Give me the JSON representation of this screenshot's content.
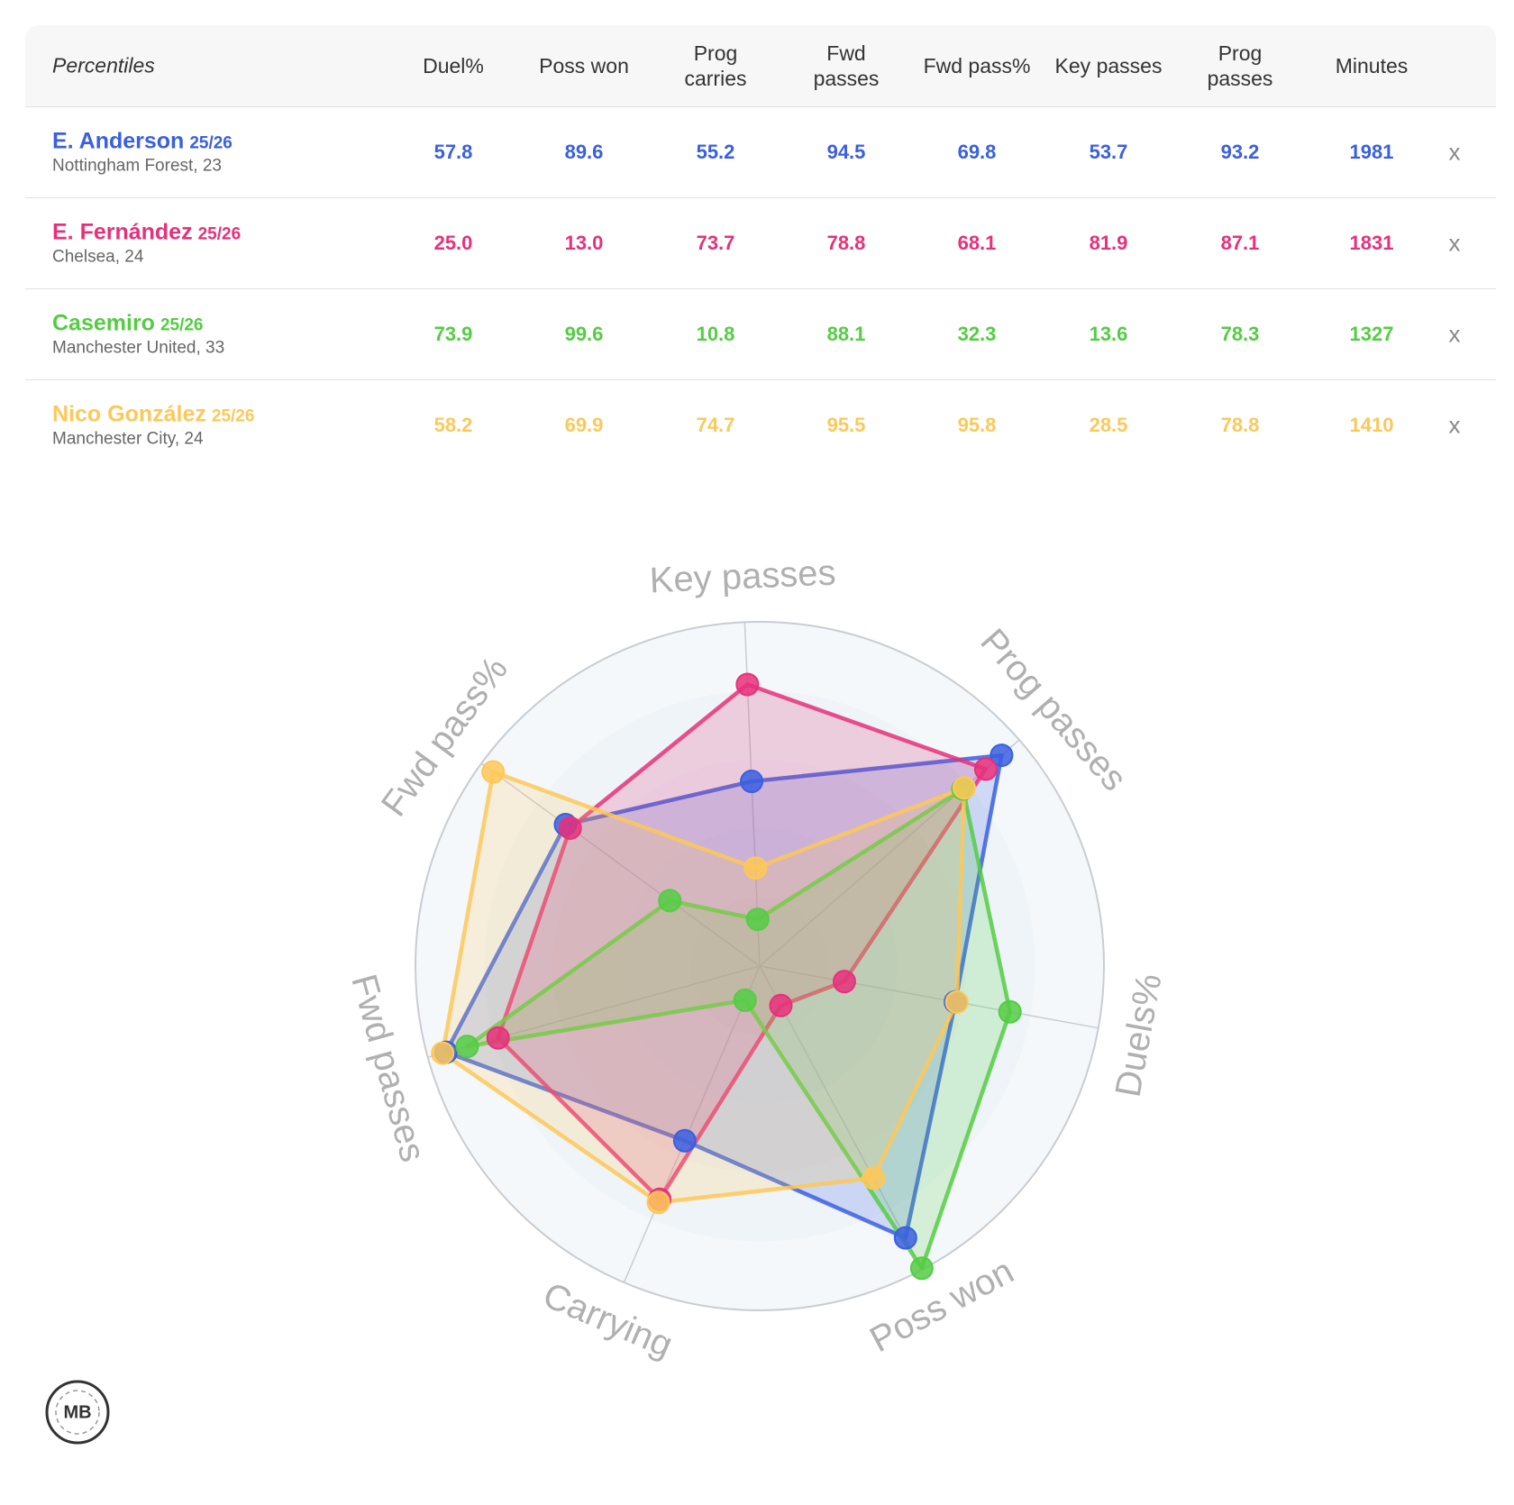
{
  "table": {
    "corner": "Percentiles",
    "columns": [
      "Duel%",
      "Poss won",
      "Prog carries",
      "Fwd passes",
      "Fwd pass%",
      "Key passes",
      "Prog passes",
      "Minutes"
    ],
    "remove": "x",
    "rows": [
      {
        "name": "E. Anderson",
        "season": "25/26",
        "club": "Nottingham Forest, 23",
        "color": "#3a5fe0",
        "cells": [
          "57.8",
          "89.6",
          "55.2",
          "94.5",
          "69.8",
          "53.7",
          "93.2",
          "1981"
        ]
      },
      {
        "name": "E. Fernández",
        "season": "25/26",
        "club": "Chelsea, 24",
        "color": "#e8307a",
        "cells": [
          "25.0",
          "13.0",
          "73.7",
          "78.8",
          "68.1",
          "81.9",
          "87.1",
          "1831"
        ]
      },
      {
        "name": "Casemiro",
        "season": "25/26",
        "club": "Manchester United, 33",
        "color": "#55cc44",
        "cells": [
          "73.9",
          "99.6",
          "10.8",
          "88.1",
          "32.3",
          "13.6",
          "78.3",
          "1327"
        ]
      },
      {
        "name": "Nico González",
        "season": "25/26",
        "club": "Manchester City, 24",
        "color": "#fdc858",
        "cells": [
          "58.2",
          "69.9",
          "74.7",
          "95.5",
          "95.8",
          "28.5",
          "78.8",
          "1410"
        ]
      }
    ]
  },
  "chart_data": {
    "type": "radar",
    "axes": [
      "Key passes",
      "Prog passes",
      "Duels%",
      "Poss won",
      "Carrying",
      "Fwd passes",
      "Fwd pass%"
    ],
    "rlim": [
      0,
      100
    ],
    "series": [
      {
        "name": "E. Anderson",
        "color": "#3a5fe0",
        "values": [
          53.7,
          93.2,
          57.8,
          89.6,
          55.2,
          94.5,
          69.8
        ]
      },
      {
        "name": "E. Fernández",
        "color": "#e8307a",
        "values": [
          81.9,
          87.1,
          25.0,
          13.0,
          73.7,
          78.8,
          68.1
        ]
      },
      {
        "name": "Casemiro",
        "color": "#55cc44",
        "values": [
          13.6,
          78.3,
          73.9,
          99.6,
          10.8,
          88.1,
          32.3
        ]
      },
      {
        "name": "Nico González",
        "color": "#fdc858",
        "values": [
          28.5,
          78.8,
          58.2,
          69.9,
          74.7,
          95.5,
          95.8
        ]
      }
    ]
  },
  "logo": "MB"
}
